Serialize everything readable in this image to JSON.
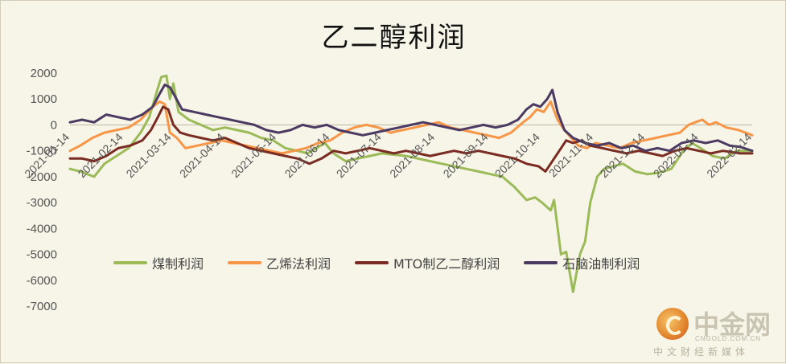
{
  "chart_data": {
    "type": "line",
    "title": "乙二醇利润",
    "xlabel": "",
    "ylabel": "",
    "ylim": [
      -7000,
      2000
    ],
    "yticks": [
      "2000",
      "1000",
      "0",
      "-1000",
      "-2000",
      "-3000",
      "-4000",
      "-5000",
      "-6000",
      "-7000"
    ],
    "xticks": [
      "2021-01-14",
      "2021-02-14",
      "2021-03-14",
      "2021-04-14",
      "2021-05-14",
      "2021-06-14",
      "2021-07-14",
      "2021-08-14",
      "2021-09-14",
      "2021-10-14",
      "2021-11-14",
      "2021-12-14",
      "2022-01-14",
      "2022-02-14"
    ],
    "legend_position": "bottom",
    "x_range": [
      "2021-01-14",
      "2022-02-14"
    ],
    "series": [
      {
        "name": "煤制利润",
        "color": "#9bbb59",
        "points": [
          [
            "2021-01-14",
            -1700
          ],
          [
            "2021-01-20",
            -1800
          ],
          [
            "2021-01-28",
            -2000
          ],
          [
            "2021-02-03",
            -1500
          ],
          [
            "2021-02-10",
            -1200
          ],
          [
            "2021-02-17",
            -900
          ],
          [
            "2021-02-24",
            -300
          ],
          [
            "2021-03-01",
            300
          ],
          [
            "2021-03-05",
            1200
          ],
          [
            "2021-03-08",
            1850
          ],
          [
            "2021-03-11",
            1900
          ],
          [
            "2021-03-13",
            1000
          ],
          [
            "2021-03-15",
            1600
          ],
          [
            "2021-03-18",
            500
          ],
          [
            "2021-03-24",
            200
          ],
          [
            "2021-03-31",
            0
          ],
          [
            "2021-04-07",
            -200
          ],
          [
            "2021-04-14",
            -100
          ],
          [
            "2021-04-21",
            -200
          ],
          [
            "2021-04-28",
            -300
          ],
          [
            "2021-05-05",
            -500
          ],
          [
            "2021-05-12",
            -600
          ],
          [
            "2021-05-19",
            -900
          ],
          [
            "2021-05-26",
            -1000
          ],
          [
            "2021-06-01",
            -1100
          ],
          [
            "2021-06-06",
            -900
          ],
          [
            "2021-06-11",
            -700
          ],
          [
            "2021-06-16",
            -1100
          ],
          [
            "2021-06-23",
            -1400
          ],
          [
            "2021-06-30",
            -1300
          ],
          [
            "2021-07-07",
            -1200
          ],
          [
            "2021-07-14",
            -1100
          ],
          [
            "2021-07-21",
            -1150
          ],
          [
            "2021-07-28",
            -1200
          ],
          [
            "2021-08-04",
            -1300
          ],
          [
            "2021-08-11",
            -1400
          ],
          [
            "2021-08-18",
            -1500
          ],
          [
            "2021-08-25",
            -1600
          ],
          [
            "2021-09-01",
            -1700
          ],
          [
            "2021-09-08",
            -1800
          ],
          [
            "2021-09-15",
            -1900
          ],
          [
            "2021-09-22",
            -2000
          ],
          [
            "2021-09-29",
            -2400
          ],
          [
            "2021-10-06",
            -2900
          ],
          [
            "2021-10-11",
            -2800
          ],
          [
            "2021-10-15",
            -3000
          ],
          [
            "2021-10-20",
            -3300
          ],
          [
            "2021-10-22",
            -2900
          ],
          [
            "2021-10-26",
            -5000
          ],
          [
            "2021-10-29",
            -4900
          ],
          [
            "2021-11-02",
            -6450
          ],
          [
            "2021-11-06",
            -5000
          ],
          [
            "2021-11-09",
            -4500
          ],
          [
            "2021-11-12",
            -3000
          ],
          [
            "2021-11-16",
            -2000
          ],
          [
            "2021-11-20",
            -1700
          ],
          [
            "2021-11-25",
            -1600
          ],
          [
            "2021-12-01",
            -1500
          ],
          [
            "2021-12-08",
            -1800
          ],
          [
            "2021-12-15",
            -1900
          ],
          [
            "2021-12-22",
            -1850
          ],
          [
            "2021-12-29",
            -1700
          ],
          [
            "2022-01-05",
            -1000
          ],
          [
            "2022-01-10",
            -700
          ],
          [
            "2022-01-15",
            -900
          ],
          [
            "2022-01-22",
            -1200
          ],
          [
            "2022-01-29",
            -1300
          ],
          [
            "2022-02-05",
            -1000
          ],
          [
            "2022-02-14",
            -1000
          ]
        ]
      },
      {
        "name": "乙烯法利润",
        "color": "#f79646",
        "points": [
          [
            "2021-01-14",
            -1000
          ],
          [
            "2021-01-20",
            -800
          ],
          [
            "2021-01-27",
            -500
          ],
          [
            "2021-02-03",
            -300
          ],
          [
            "2021-02-10",
            -200
          ],
          [
            "2021-02-17",
            -100
          ],
          [
            "2021-02-24",
            200
          ],
          [
            "2021-03-03",
            700
          ],
          [
            "2021-03-07",
            900
          ],
          [
            "2021-03-10",
            800
          ],
          [
            "2021-03-13",
            -300
          ],
          [
            "2021-03-17",
            -500
          ],
          [
            "2021-03-22",
            -900
          ],
          [
            "2021-03-29",
            -800
          ],
          [
            "2021-04-05",
            -700
          ],
          [
            "2021-04-12",
            -600
          ],
          [
            "2021-04-19",
            -700
          ],
          [
            "2021-04-26",
            -800
          ],
          [
            "2021-05-03",
            -900
          ],
          [
            "2021-05-10",
            -1000
          ],
          [
            "2021-05-17",
            -1100
          ],
          [
            "2021-05-24",
            -1000
          ],
          [
            "2021-05-31",
            -900
          ],
          [
            "2021-06-07",
            -700
          ],
          [
            "2021-06-14",
            -600
          ],
          [
            "2021-06-21",
            -300
          ],
          [
            "2021-06-28",
            -100
          ],
          [
            "2021-07-05",
            0
          ],
          [
            "2021-07-12",
            -100
          ],
          [
            "2021-07-19",
            -300
          ],
          [
            "2021-07-26",
            -200
          ],
          [
            "2021-08-02",
            -100
          ],
          [
            "2021-08-09",
            0
          ],
          [
            "2021-08-16",
            100
          ],
          [
            "2021-08-23",
            -100
          ],
          [
            "2021-08-30",
            -200
          ],
          [
            "2021-09-06",
            -300
          ],
          [
            "2021-09-13",
            -400
          ],
          [
            "2021-09-20",
            -500
          ],
          [
            "2021-09-27",
            -300
          ],
          [
            "2021-10-04",
            100
          ],
          [
            "2021-10-08",
            300
          ],
          [
            "2021-10-12",
            600
          ],
          [
            "2021-10-16",
            500
          ],
          [
            "2021-10-20",
            900
          ],
          [
            "2021-10-24",
            200
          ],
          [
            "2021-10-28",
            -200
          ],
          [
            "2021-11-01",
            -500
          ],
          [
            "2021-11-05",
            -800
          ],
          [
            "2021-11-10",
            -900
          ],
          [
            "2021-11-15",
            -700
          ],
          [
            "2021-11-22",
            -800
          ],
          [
            "2021-11-29",
            -900
          ],
          [
            "2021-12-06",
            -700
          ],
          [
            "2021-12-13",
            -600
          ],
          [
            "2021-12-20",
            -500
          ],
          [
            "2021-12-27",
            -400
          ],
          [
            "2022-01-03",
            -300
          ],
          [
            "2022-01-08",
            0
          ],
          [
            "2022-01-12",
            100
          ],
          [
            "2022-01-16",
            200
          ],
          [
            "2022-01-20",
            0
          ],
          [
            "2022-01-24",
            100
          ],
          [
            "2022-01-30",
            -100
          ],
          [
            "2022-02-06",
            -200
          ],
          [
            "2022-02-14",
            -400
          ]
        ]
      },
      {
        "name": "MTO制乙二醇利润",
        "color": "#7b2c22",
        "points": [
          [
            "2021-01-14",
            -1300
          ],
          [
            "2021-01-21",
            -1300
          ],
          [
            "2021-01-28",
            -1400
          ],
          [
            "2021-02-04",
            -1200
          ],
          [
            "2021-02-11",
            -900
          ],
          [
            "2021-02-18",
            -800
          ],
          [
            "2021-02-25",
            -600
          ],
          [
            "2021-03-02",
            -200
          ],
          [
            "2021-03-06",
            300
          ],
          [
            "2021-03-09",
            700
          ],
          [
            "2021-03-12",
            600
          ],
          [
            "2021-03-15",
            0
          ],
          [
            "2021-03-19",
            -300
          ],
          [
            "2021-03-24",
            -400
          ],
          [
            "2021-03-31",
            -500
          ],
          [
            "2021-04-07",
            -600
          ],
          [
            "2021-04-14",
            -500
          ],
          [
            "2021-04-21",
            -700
          ],
          [
            "2021-04-28",
            -900
          ],
          [
            "2021-05-05",
            -1000
          ],
          [
            "2021-05-12",
            -1100
          ],
          [
            "2021-05-19",
            -1200
          ],
          [
            "2021-05-26",
            -1300
          ],
          [
            "2021-06-02",
            -1500
          ],
          [
            "2021-06-09",
            -1300
          ],
          [
            "2021-06-16",
            -1000
          ],
          [
            "2021-06-23",
            -1100
          ],
          [
            "2021-06-30",
            -1000
          ],
          [
            "2021-07-07",
            -900
          ],
          [
            "2021-07-14",
            -1000
          ],
          [
            "2021-07-21",
            -1100
          ],
          [
            "2021-07-28",
            -1000
          ],
          [
            "2021-08-04",
            -1100
          ],
          [
            "2021-08-11",
            -1200
          ],
          [
            "2021-08-18",
            -1100
          ],
          [
            "2021-08-25",
            -1000
          ],
          [
            "2021-09-01",
            -1100
          ],
          [
            "2021-09-08",
            -1000
          ],
          [
            "2021-09-15",
            -1100
          ],
          [
            "2021-09-22",
            -1200
          ],
          [
            "2021-09-29",
            -1300
          ],
          [
            "2021-10-06",
            -1500
          ],
          [
            "2021-10-13",
            -1600
          ],
          [
            "2021-10-17",
            -1800
          ],
          [
            "2021-10-21",
            -1400
          ],
          [
            "2021-10-25",
            -1000
          ],
          [
            "2021-10-29",
            -600
          ],
          [
            "2021-11-02",
            -700
          ],
          [
            "2021-11-07",
            -600
          ],
          [
            "2021-11-12",
            -800
          ],
          [
            "2021-11-19",
            -900
          ],
          [
            "2021-11-26",
            -1000
          ],
          [
            "2021-12-03",
            -1100
          ],
          [
            "2021-12-10",
            -1000
          ],
          [
            "2021-12-17",
            -1100
          ],
          [
            "2021-12-24",
            -1200
          ],
          [
            "2021-12-31",
            -1000
          ],
          [
            "2022-01-07",
            -900
          ],
          [
            "2022-01-14",
            -1000
          ],
          [
            "2022-01-21",
            -1100
          ],
          [
            "2022-01-28",
            -1000
          ],
          [
            "2022-02-07",
            -1100
          ],
          [
            "2022-02-14",
            -1100
          ]
        ]
      },
      {
        "name": "石脑油制利润",
        "color": "#4b3a62",
        "points": [
          [
            "2021-01-14",
            100
          ],
          [
            "2021-01-21",
            200
          ],
          [
            "2021-01-28",
            100
          ],
          [
            "2021-02-04",
            400
          ],
          [
            "2021-02-11",
            300
          ],
          [
            "2021-02-18",
            200
          ],
          [
            "2021-02-25",
            400
          ],
          [
            "2021-03-03",
            700
          ],
          [
            "2021-03-07",
            1200
          ],
          [
            "2021-03-10",
            1550
          ],
          [
            "2021-03-13",
            1450
          ],
          [
            "2021-03-16",
            1100
          ],
          [
            "2021-03-20",
            600
          ],
          [
            "2021-03-27",
            500
          ],
          [
            "2021-04-03",
            400
          ],
          [
            "2021-04-10",
            300
          ],
          [
            "2021-04-17",
            200
          ],
          [
            "2021-04-24",
            100
          ],
          [
            "2021-05-01",
            0
          ],
          [
            "2021-05-08",
            -200
          ],
          [
            "2021-05-15",
            -300
          ],
          [
            "2021-05-22",
            -200
          ],
          [
            "2021-05-29",
            0
          ],
          [
            "2021-06-05",
            -100
          ],
          [
            "2021-06-12",
            0
          ],
          [
            "2021-06-19",
            -200
          ],
          [
            "2021-06-26",
            -300
          ],
          [
            "2021-07-03",
            -400
          ],
          [
            "2021-07-10",
            -300
          ],
          [
            "2021-07-17",
            -200
          ],
          [
            "2021-07-24",
            -100
          ],
          [
            "2021-07-31",
            0
          ],
          [
            "2021-08-07",
            100
          ],
          [
            "2021-08-14",
            0
          ],
          [
            "2021-08-21",
            -100
          ],
          [
            "2021-08-28",
            -200
          ],
          [
            "2021-09-04",
            -100
          ],
          [
            "2021-09-11",
            0
          ],
          [
            "2021-09-18",
            -100
          ],
          [
            "2021-09-25",
            0
          ],
          [
            "2021-10-01",
            200
          ],
          [
            "2021-10-06",
            600
          ],
          [
            "2021-10-10",
            800
          ],
          [
            "2021-10-14",
            700
          ],
          [
            "2021-10-18",
            1000
          ],
          [
            "2021-10-21",
            1350
          ],
          [
            "2021-10-24",
            500
          ],
          [
            "2021-10-28",
            -200
          ],
          [
            "2021-11-02",
            -500
          ],
          [
            "2021-11-09",
            -700
          ],
          [
            "2021-11-16",
            -800
          ],
          [
            "2021-11-23",
            -700
          ],
          [
            "2021-11-30",
            -900
          ],
          [
            "2021-12-07",
            -800
          ],
          [
            "2021-12-14",
            -1000
          ],
          [
            "2021-12-21",
            -900
          ],
          [
            "2021-12-28",
            -1000
          ],
          [
            "2022-01-04",
            -700
          ],
          [
            "2022-01-11",
            -600
          ],
          [
            "2022-01-18",
            -700
          ],
          [
            "2022-01-25",
            -600
          ],
          [
            "2022-02-01",
            -800
          ],
          [
            "2022-02-07",
            -850
          ],
          [
            "2022-02-14",
            -1000
          ]
        ]
      }
    ]
  },
  "watermark": {
    "name": "中金网",
    "site": "CNGOLD.COM.CN",
    "slogan": "中文财经新媒体"
  }
}
